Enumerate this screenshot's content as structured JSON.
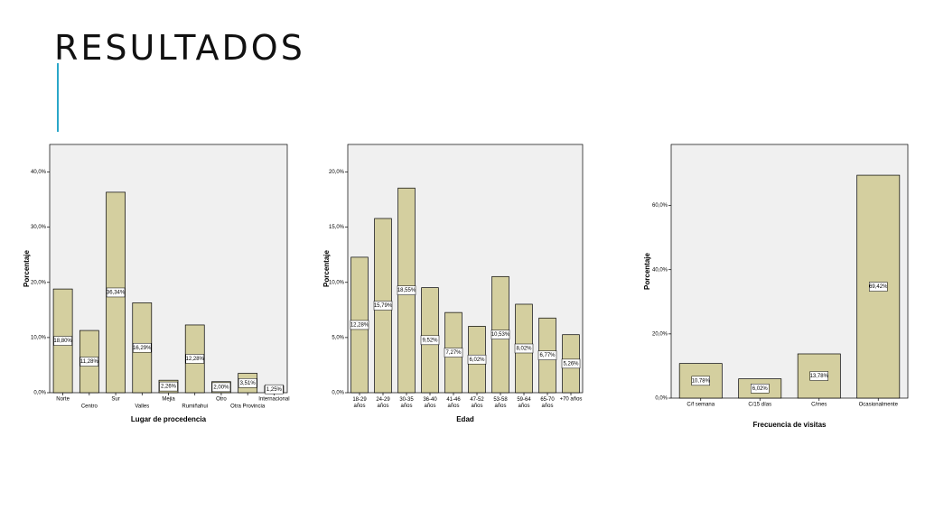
{
  "header": {
    "title": "RESULTADOS"
  },
  "chart_data": [
    {
      "type": "bar",
      "x_label": "Lugar de procedencia",
      "y_label": "Porcentaje",
      "categories": [
        "Norte",
        "Centro",
        "Sur",
        "Valles",
        "Mejia",
        "Rumiñahui",
        "Otro",
        "Otra Provincia",
        "Internacional"
      ],
      "values": [
        18.8,
        11.28,
        36.34,
        16.29,
        2.26,
        12.28,
        2.0,
        3.51,
        1.25
      ],
      "value_labels": [
        "18,80%",
        "11,28%",
        "36,34%",
        "16,29%",
        "2,26%",
        "12,28%",
        "2,00%",
        "3,51%",
        "1,25%"
      ],
      "color": "#d4cf9f",
      "ylim": [
        0,
        45
      ],
      "yticks": [
        {
          "value": 0,
          "label": "0,0%"
        },
        {
          "value": 10,
          "label": "10,0%"
        },
        {
          "value": 20,
          "label": "20,0%"
        },
        {
          "value": 30,
          "label": "30,0%"
        },
        {
          "value": 40,
          "label": "40,0%"
        }
      ]
    },
    {
      "type": "bar",
      "x_label": "Edad",
      "y_label": "Porcentaje",
      "categories": [
        "18-29 años",
        "24-29 años",
        "30-35 años",
        "36-40 años",
        "41-46 años",
        "47-52 años",
        "53-58 años",
        "59-64 años",
        "65-70 años",
        "+70 años"
      ],
      "values": [
        12.28,
        15.79,
        18.55,
        9.52,
        7.27,
        6.02,
        10.53,
        8.02,
        6.77,
        5.26
      ],
      "value_labels": [
        "12,28%",
        "15,79%",
        "18,55%",
        "9,52%",
        "7,27%",
        "6,02%",
        "10,53%",
        "8,02%",
        "6,77%",
        "5,26%"
      ],
      "color": "#d4cf9f",
      "ylim": [
        0,
        22.5
      ],
      "yticks": [
        {
          "value": 0,
          "label": "0,0%"
        },
        {
          "value": 5,
          "label": "5,0%"
        },
        {
          "value": 10,
          "label": "10,0%"
        },
        {
          "value": 15,
          "label": "15,0%"
        },
        {
          "value": 20,
          "label": "20,0%"
        }
      ]
    },
    {
      "type": "bar",
      "x_label": "Frecuencia de visitas",
      "y_label": "Porcentaje",
      "categories": [
        "C/f semana",
        "C/15 días",
        "C/mes",
        "Ocasionalmente"
      ],
      "values": [
        10.78,
        6.02,
        13.78,
        69.42
      ],
      "value_labels": [
        "10,78%",
        "6,02%",
        "13,78%",
        "69,42%"
      ],
      "color": "#d4cf9f",
      "ylim": [
        0,
        79
      ],
      "yticks": [
        {
          "value": 0,
          "label": "0,0%"
        },
        {
          "value": 20,
          "label": "20,0%"
        },
        {
          "value": 40,
          "label": "40,0%"
        },
        {
          "value": 60,
          "label": "60,0%"
        }
      ]
    }
  ]
}
